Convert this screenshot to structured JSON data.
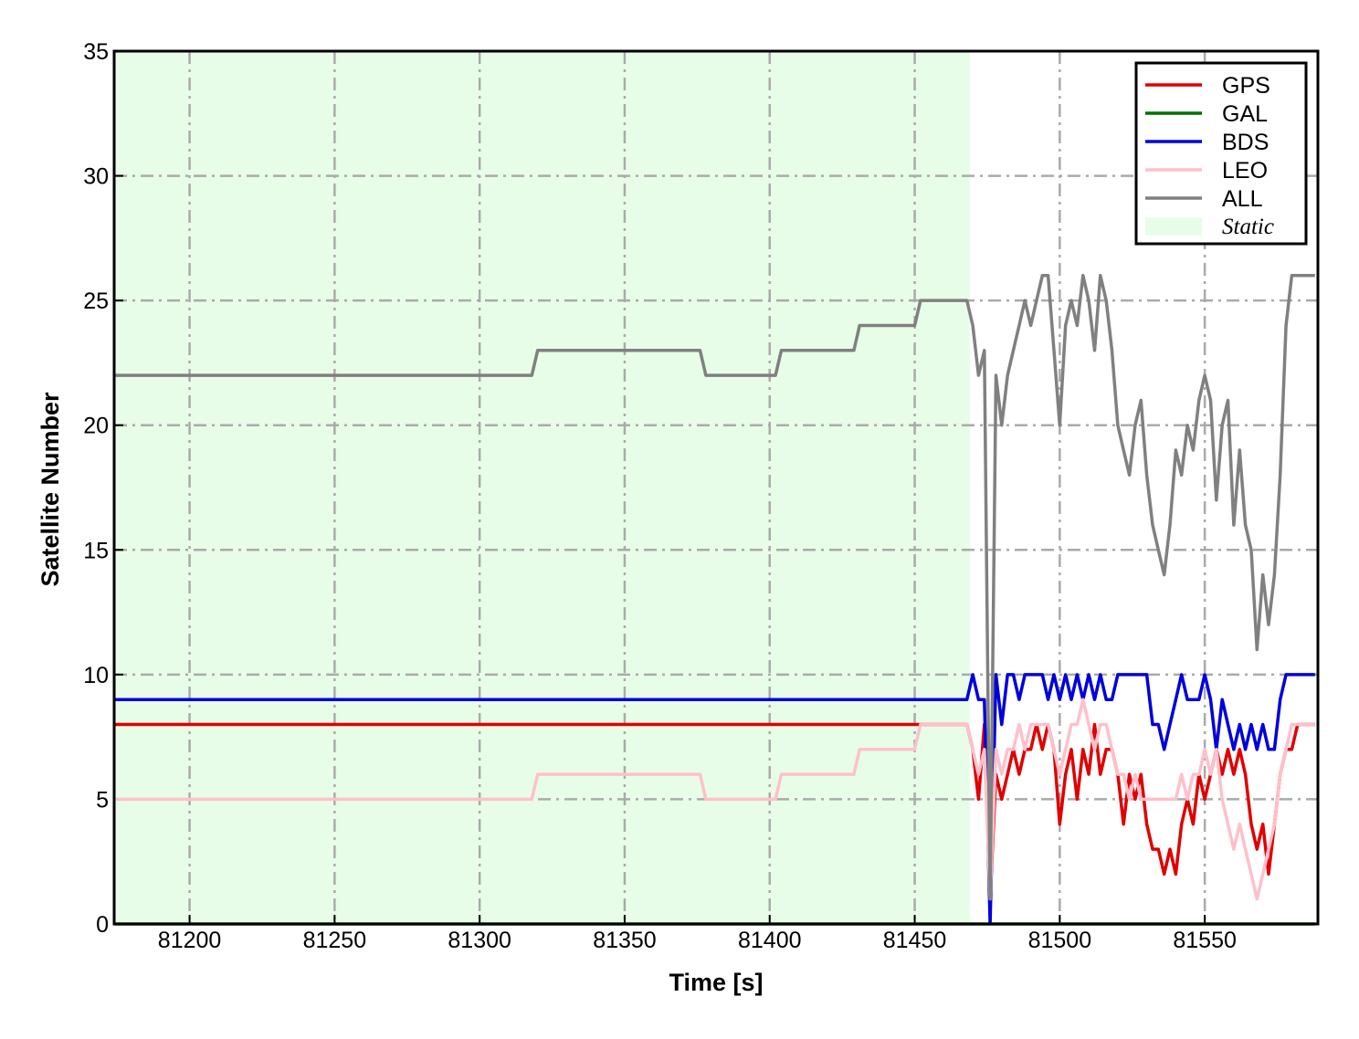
{
  "chart_data": {
    "type": "line",
    "xlabel": "Time [s]",
    "ylabel": "Satellite Number",
    "xlim": [
      81174,
      81589
    ],
    "ylim": [
      0,
      35
    ],
    "xticks": [
      81200,
      81250,
      81300,
      81350,
      81400,
      81450,
      81500,
      81550
    ],
    "yticks": [
      0,
      5,
      10,
      15,
      20,
      25,
      30,
      35
    ],
    "grid": true,
    "legend": "upper right",
    "shaded_region": {
      "label": "Static",
      "xrange": [
        81174,
        81469
      ],
      "color": "#e8fde8"
    },
    "x": [
      81174,
      81318,
      81320,
      81376,
      81378,
      81402,
      81404,
      81429,
      81431,
      81450,
      81452,
      81468,
      81470,
      81472,
      81474,
      81476,
      81478,
      81480,
      81482,
      81484,
      81486,
      81488,
      81490,
      81492,
      81494,
      81496,
      81498,
      81500,
      81502,
      81504,
      81506,
      81508,
      81510,
      81512,
      81514,
      81516,
      81518,
      81520,
      81522,
      81524,
      81526,
      81528,
      81530,
      81532,
      81534,
      81536,
      81538,
      81540,
      81542,
      81544,
      81546,
      81548,
      81550,
      81552,
      81554,
      81556,
      81558,
      81560,
      81562,
      81564,
      81566,
      81568,
      81570,
      81572,
      81574,
      81576,
      81578,
      81580,
      81582,
      81584,
      81586,
      81588
    ],
    "series": [
      {
        "name": "GPS",
        "color": "#e00000",
        "values": [
          8,
          8,
          8,
          8,
          8,
          8,
          8,
          8,
          8,
          8,
          8,
          8,
          7,
          5,
          8,
          1,
          6,
          5,
          6,
          7,
          6,
          7,
          7,
          8,
          7,
          8,
          7,
          4,
          6,
          7,
          5,
          7,
          6,
          8,
          6,
          7,
          7,
          6,
          4,
          6,
          5,
          6,
          4,
          3,
          3,
          2,
          3,
          2,
          4,
          5,
          4,
          6,
          5,
          6,
          7,
          6,
          7,
          6,
          7,
          6,
          4,
          3,
          4,
          2,
          4,
          6,
          7,
          7,
          8,
          8,
          8,
          8
        ]
      },
      {
        "name": "GAL",
        "color": "#007000",
        "values": [
          0,
          0,
          0,
          0,
          0,
          0,
          0,
          0,
          0,
          0,
          0,
          0,
          0,
          0,
          0,
          0,
          0,
          0,
          0,
          0,
          0,
          0,
          0,
          0,
          0,
          0,
          0,
          0,
          0,
          0,
          0,
          0,
          0,
          0,
          0,
          0,
          0,
          0,
          0,
          0,
          0,
          0,
          0,
          0,
          0,
          0,
          0,
          0,
          0,
          0,
          0,
          0,
          0,
          0,
          0,
          0,
          0,
          0,
          0,
          0,
          0,
          0,
          0,
          0,
          0,
          0,
          0,
          0,
          0,
          0,
          0,
          0
        ]
      },
      {
        "name": "BDS",
        "color": "#0000dd",
        "values": [
          9,
          9,
          9,
          9,
          9,
          9,
          9,
          9,
          9,
          9,
          9,
          9,
          10,
          9,
          9,
          0,
          10,
          8,
          10,
          10,
          9,
          10,
          10,
          10,
          10,
          9,
          10,
          9,
          10,
          9,
          10,
          9,
          10,
          9,
          10,
          9,
          9,
          10,
          10,
          10,
          10,
          10,
          10,
          8,
          8,
          7,
          8,
          9,
          10,
          9,
          9,
          9,
          10,
          9,
          7,
          9,
          8,
          7,
          8,
          7,
          8,
          7,
          8,
          7,
          7,
          9,
          10,
          10,
          10,
          10,
          10,
          10
        ]
      },
      {
        "name": "LEO",
        "color": "#ffc0cb",
        "values": [
          5,
          5,
          6,
          6,
          5,
          5,
          6,
          6,
          7,
          7,
          8,
          8,
          7,
          6,
          7,
          1,
          7,
          6,
          7,
          7,
          8,
          7,
          8,
          8,
          8,
          8,
          7,
          6,
          7,
          8,
          8,
          9,
          8,
          7,
          8,
          8,
          7,
          6,
          6,
          5,
          6,
          5,
          5,
          5,
          5,
          5,
          5,
          5,
          6,
          5,
          6,
          6,
          7,
          6,
          7,
          5,
          4,
          3,
          4,
          3,
          2,
          1,
          2,
          3,
          4,
          6,
          7,
          8,
          8,
          8,
          8,
          8
        ]
      },
      {
        "name": "ALL",
        "color": "#808080",
        "values": [
          22,
          22,
          23,
          23,
          22,
          22,
          23,
          23,
          24,
          24,
          25,
          25,
          24,
          22,
          23,
          1,
          22,
          20,
          22,
          23,
          24,
          25,
          24,
          25,
          26,
          26,
          23,
          20,
          24,
          25,
          24,
          26,
          25,
          23,
          26,
          25,
          23,
          20,
          19,
          18,
          20,
          21,
          18,
          16,
          15,
          14,
          16,
          19,
          18,
          20,
          19,
          21,
          22,
          21,
          17,
          20,
          21,
          16,
          19,
          16,
          15,
          11,
          14,
          12,
          14,
          18,
          24,
          26,
          26,
          26,
          26,
          26
        ]
      }
    ]
  }
}
